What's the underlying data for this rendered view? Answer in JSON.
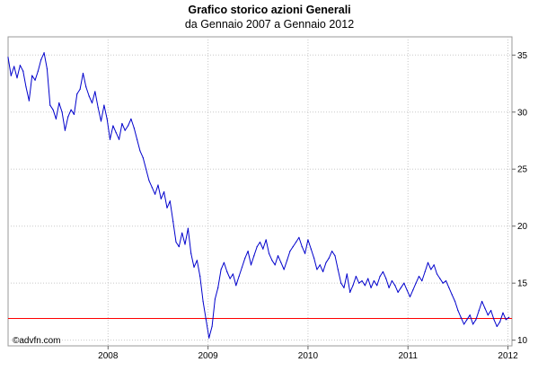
{
  "chart_data": {
    "type": "line",
    "title": "Grafico storico azioni Generali",
    "subtitle": "da Gennaio 2007 a Gennaio 2012",
    "watermark": "©advfn.com",
    "xlabel": "",
    "ylabel": "",
    "x_ticks": [
      "2008",
      "2009",
      "2010",
      "2011",
      "2012"
    ],
    "y_ticks": [
      "10",
      "15",
      "20",
      "25",
      "30",
      "35"
    ],
    "xlim": [
      2007.0,
      2012.04
    ],
    "ylim": [
      9.5,
      36.6
    ],
    "grid": true,
    "line_color": "#0000cc",
    "reference_line": {
      "value": 11.9,
      "color": "#ff0000"
    },
    "series": [
      {
        "x": [
          2007.0,
          2007.03,
          2007.06,
          2007.09,
          2007.12,
          2007.15,
          2007.18,
          2007.21,
          2007.24,
          2007.27,
          2007.3,
          2007.33,
          2007.36,
          2007.39,
          2007.42,
          2007.45,
          2007.48,
          2007.51,
          2007.54,
          2007.57,
          2007.6,
          2007.63,
          2007.66,
          2007.69,
          2007.72,
          2007.75,
          2007.78,
          2007.81,
          2007.84,
          2007.87,
          2007.9,
          2007.93,
          2007.96,
          2007.99,
          2008.02,
          2008.05,
          2008.08,
          2008.11,
          2008.14,
          2008.17,
          2008.2,
          2008.23,
          2008.26,
          2008.29,
          2008.32,
          2008.35,
          2008.38,
          2008.41,
          2008.44,
          2008.47,
          2008.5,
          2008.53,
          2008.56,
          2008.59,
          2008.62,
          2008.65,
          2008.68,
          2008.71,
          2008.74,
          2008.77,
          2008.8,
          2008.83,
          2008.86,
          2008.89,
          2008.92,
          2008.95,
          2008.98,
          2009.01,
          2009.04,
          2009.07,
          2009.1,
          2009.13,
          2009.16,
          2009.19,
          2009.22,
          2009.25,
          2009.28,
          2009.31,
          2009.34,
          2009.37,
          2009.4,
          2009.43,
          2009.46,
          2009.49,
          2009.52,
          2009.55,
          2009.58,
          2009.61,
          2009.64,
          2009.67,
          2009.7,
          2009.73,
          2009.76,
          2009.79,
          2009.82,
          2009.85,
          2009.88,
          2009.91,
          2009.94,
          2009.97,
          2010.0,
          2010.03,
          2010.06,
          2010.09,
          2010.12,
          2010.15,
          2010.18,
          2010.21,
          2010.24,
          2010.27,
          2010.3,
          2010.33,
          2010.36,
          2010.39,
          2010.42,
          2010.45,
          2010.48,
          2010.51,
          2010.54,
          2010.57,
          2010.6,
          2010.63,
          2010.66,
          2010.69,
          2010.72,
          2010.75,
          2010.78,
          2010.81,
          2010.84,
          2010.87,
          2010.9,
          2010.93,
          2010.96,
          2010.99,
          2011.02,
          2011.05,
          2011.08,
          2011.11,
          2011.14,
          2011.17,
          2011.2,
          2011.23,
          2011.26,
          2011.29,
          2011.32,
          2011.35,
          2011.38,
          2011.41,
          2011.44,
          2011.47,
          2011.5,
          2011.53,
          2011.56,
          2011.59,
          2011.62,
          2011.65,
          2011.68,
          2011.71,
          2011.74,
          2011.77,
          2011.8,
          2011.83,
          2011.86,
          2011.89,
          2011.92,
          2011.95,
          2011.98,
          2012.01
        ],
        "values": [
          34.8,
          33.2,
          34.0,
          33.0,
          34.1,
          33.6,
          32.2,
          31.0,
          33.2,
          32.8,
          33.6,
          34.6,
          35.2,
          33.8,
          30.6,
          30.2,
          29.4,
          30.8,
          30.0,
          28.4,
          29.6,
          30.2,
          29.8,
          31.6,
          32.0,
          33.4,
          32.2,
          31.4,
          30.8,
          31.8,
          30.4,
          29.2,
          30.6,
          29.4,
          27.6,
          28.8,
          28.2,
          27.6,
          29.0,
          28.4,
          28.8,
          29.4,
          28.6,
          27.6,
          26.6,
          26.0,
          25.0,
          24.0,
          23.4,
          22.8,
          23.6,
          22.4,
          23.0,
          21.6,
          22.2,
          20.4,
          18.6,
          18.2,
          19.4,
          18.4,
          19.8,
          17.6,
          16.4,
          17.0,
          15.6,
          13.4,
          11.8,
          10.2,
          11.2,
          13.6,
          14.6,
          16.2,
          16.8,
          16.0,
          15.4,
          15.8,
          14.8,
          15.6,
          16.4,
          17.2,
          17.8,
          16.6,
          17.4,
          18.2,
          18.6,
          18.0,
          18.8,
          17.6,
          17.0,
          16.6,
          17.4,
          16.8,
          16.2,
          17.0,
          17.8,
          18.2,
          18.6,
          19.0,
          18.2,
          17.6,
          18.8,
          18.0,
          17.2,
          16.2,
          16.6,
          16.0,
          16.8,
          17.2,
          17.8,
          17.4,
          16.2,
          15.0,
          14.6,
          15.8,
          14.2,
          14.8,
          15.6,
          15.0,
          15.2,
          14.8,
          15.4,
          14.6,
          15.2,
          14.8,
          15.6,
          16.0,
          15.4,
          14.6,
          15.2,
          14.8,
          14.2,
          14.6,
          15.0,
          14.4,
          13.8,
          14.4,
          15.0,
          15.6,
          15.2,
          16.0,
          16.8,
          16.2,
          16.6,
          15.8,
          15.4,
          15.0,
          15.2,
          14.6,
          14.0,
          13.4,
          12.6,
          12.0,
          11.4,
          11.8,
          12.2,
          11.4,
          11.8,
          12.6,
          13.4,
          12.8,
          12.2,
          12.6,
          11.8,
          11.2,
          11.6,
          12.4,
          11.8,
          12.0
        ]
      }
    ]
  }
}
